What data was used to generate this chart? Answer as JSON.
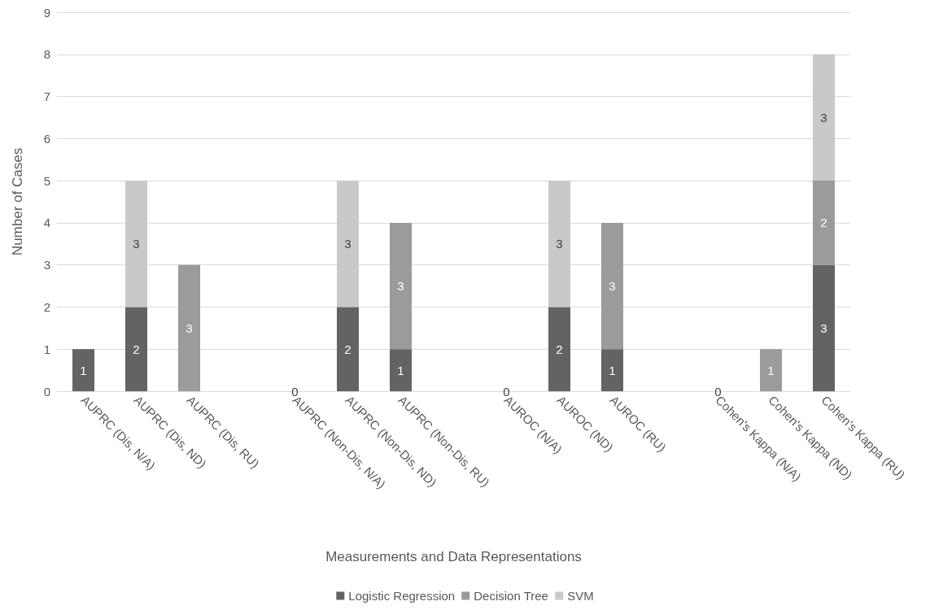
{
  "chart_data": {
    "type": "bar",
    "stacked": true,
    "xlabel": "Measurements and Data Representations",
    "ylabel": "Number of Cases",
    "categories": [
      "AUPRC (Dis, N/A)",
      "AUPRC (Dis, ND)",
      "AUPRC (Dis, RU)",
      null,
      "AUPRC (Non-Dis, N/A)",
      "AUPRC (Non-Dis, ND)",
      "AUPRC (Non-Dis, RU)",
      null,
      "AUROC (N/A)",
      "AUROC (ND)",
      "AUROC (RU)",
      null,
      "Cohen's Kappa (N/A)",
      "Cohen's Kappa (ND)",
      "Cohen's Kappa (RU)"
    ],
    "series": [
      {
        "name": "Logistic Regression",
        "color": "#636363",
        "values": [
          1,
          2,
          null,
          null,
          0,
          2,
          1,
          null,
          0,
          2,
          1,
          null,
          0,
          null,
          3
        ]
      },
      {
        "name": "Decision Tree",
        "color": "#9b9b9b",
        "values": [
          null,
          null,
          3,
          null,
          null,
          null,
          3,
          null,
          null,
          null,
          3,
          null,
          null,
          1,
          2
        ]
      },
      {
        "name": "SVM",
        "color": "#c9c9c9",
        "values": [
          null,
          3,
          null,
          null,
          null,
          3,
          null,
          null,
          null,
          3,
          null,
          null,
          null,
          null,
          3
        ]
      }
    ],
    "ylim": [
      0,
      9
    ],
    "yticks": [
      0,
      1,
      2,
      3,
      4,
      5,
      6,
      7,
      8,
      9
    ],
    "grid": "y",
    "legend": "bottom",
    "data_labels": true
  }
}
